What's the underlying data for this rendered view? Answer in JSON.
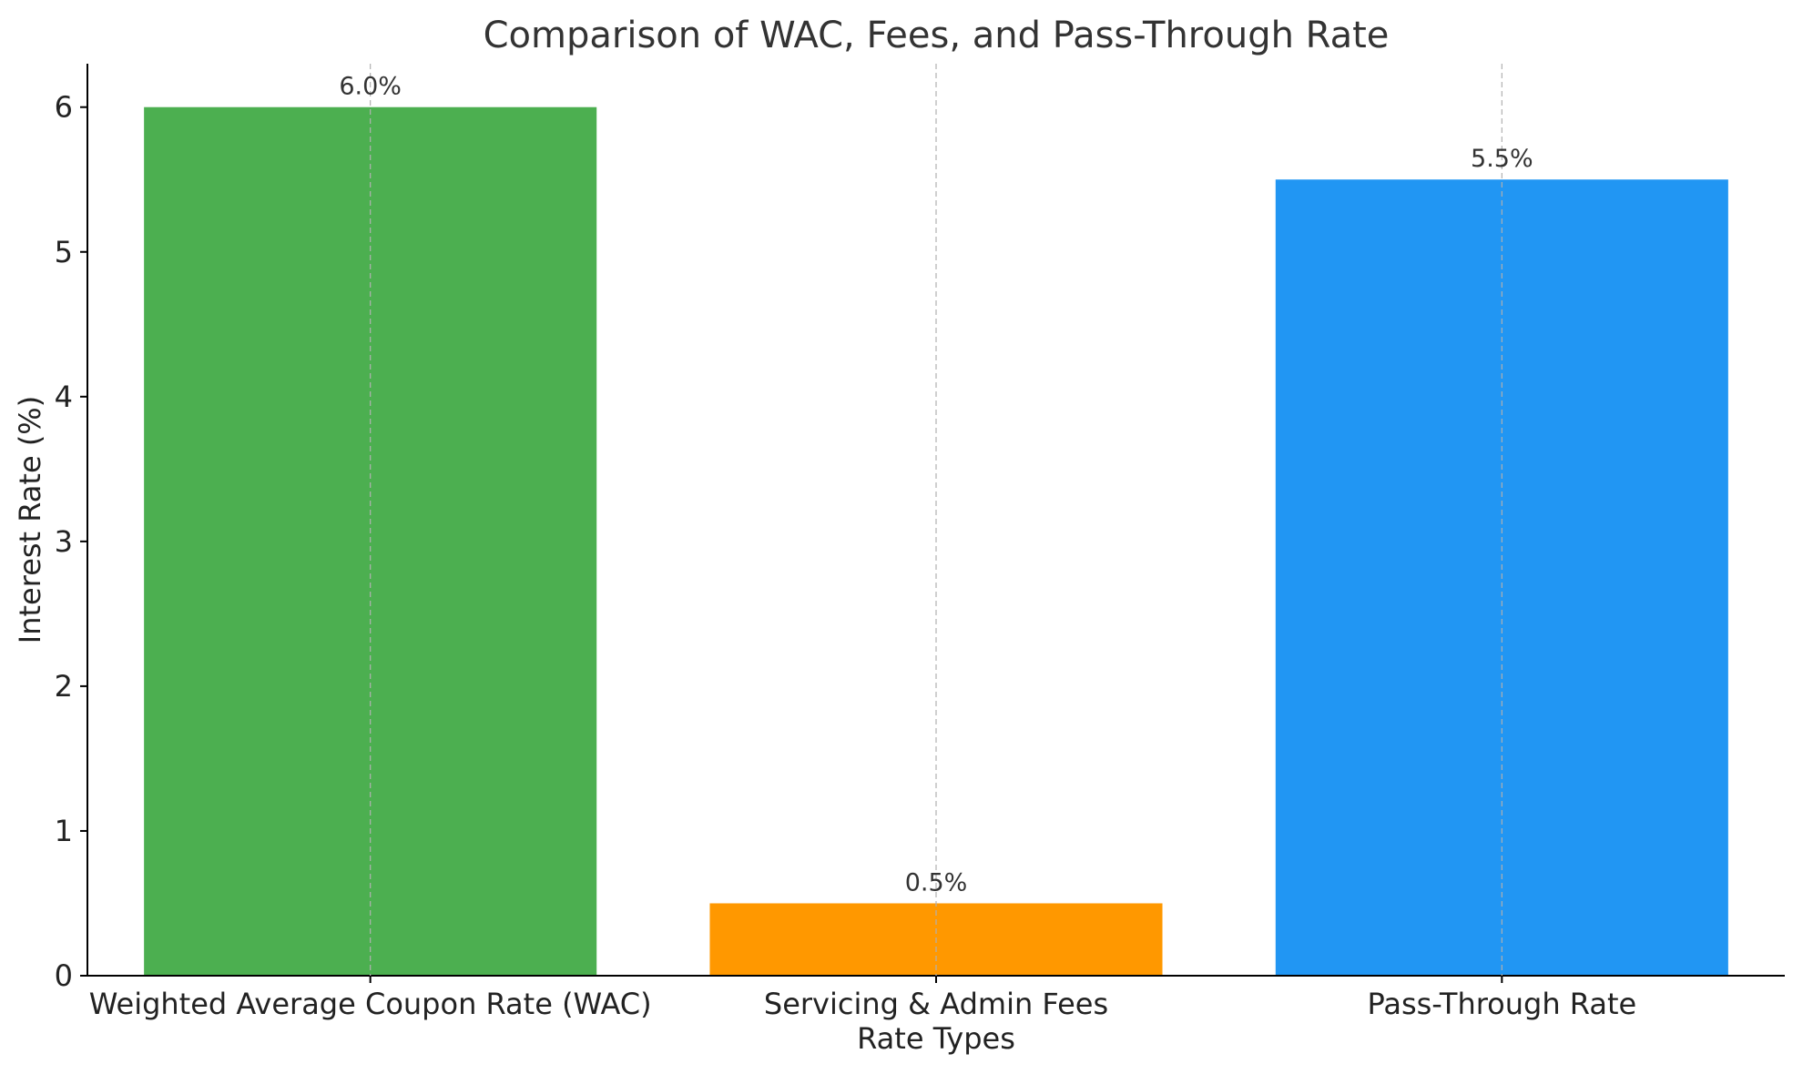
{
  "chart_data": {
    "type": "bar",
    "title": "Comparison of WAC, Fees, and Pass-Through Rate",
    "xlabel": "Rate Types",
    "ylabel": "Interest Rate (%)",
    "categories": [
      "Weighted Average Coupon Rate (WAC)",
      "Servicing & Admin Fees",
      "Pass-Through Rate"
    ],
    "values": [
      6.0,
      0.5,
      5.5
    ],
    "data_labels": [
      "6.0%",
      "0.5%",
      "5.5%"
    ],
    "colors": [
      "#4caf50",
      "#ff9800",
      "#2196f3"
    ],
    "ylim": [
      0,
      6.3
    ],
    "yticks": [
      0,
      1,
      2,
      3,
      4,
      5,
      6
    ],
    "grid": "vertical dashed lines at category centers",
    "legend": "none"
  }
}
